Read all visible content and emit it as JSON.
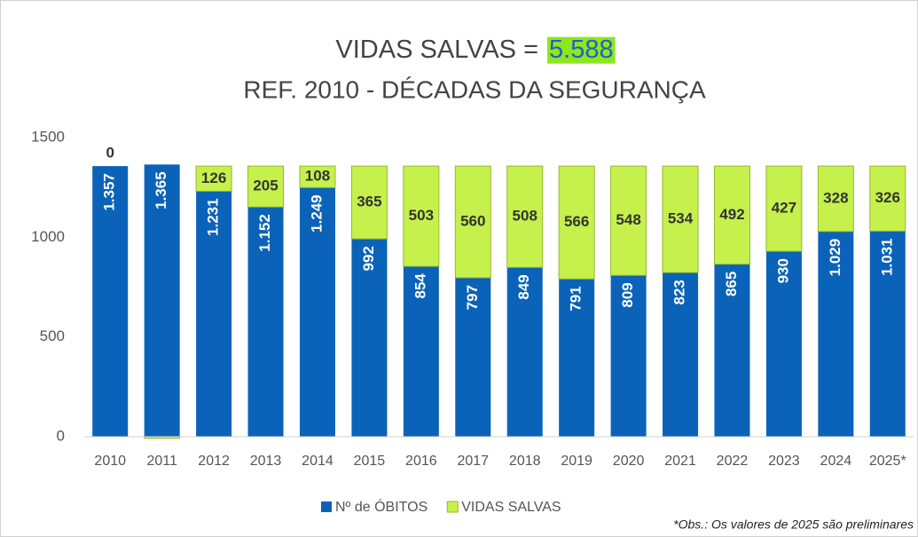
{
  "chart_data": {
    "type": "stacked_bar",
    "title": "VIDAS SALVAS =",
    "title_highlight": "5.588",
    "subtitle": "REF. 2010 - DÉCADAS DA SEGURANÇA",
    "footnote": "*Obs.: Os valores de 2025 são preliminares",
    "categories": [
      "2010",
      "2011",
      "2012",
      "2013",
      "2014",
      "2015",
      "2016",
      "2017",
      "2018",
      "2019",
      "2020",
      "2021",
      "2022",
      "2023",
      "2024",
      "2025*"
    ],
    "series": [
      {
        "name": "Nº de ÓBITOS",
        "color": "#0a63b8",
        "values": [
          1357,
          1365,
          1231,
          1152,
          1249,
          992,
          854,
          797,
          849,
          791,
          809,
          823,
          865,
          930,
          1029,
          1031
        ],
        "value_labels": [
          "1.357",
          "1.365",
          "1.231",
          "1.152",
          "1.249",
          "992",
          "854",
          "797",
          "849",
          "791",
          "809",
          "823",
          "865",
          "930",
          "1.029",
          "1.031"
        ]
      },
      {
        "name": "VIDAS SALVAS",
        "color": "#c6f04c",
        "values": [
          0,
          -8,
          126,
          205,
          108,
          365,
          503,
          560,
          508,
          566,
          548,
          534,
          492,
          427,
          328,
          326
        ],
        "value_labels": [
          "0",
          null,
          "126",
          "205",
          "108",
          "365",
          "503",
          "560",
          "508",
          "566",
          "548",
          "534",
          "492",
          "427",
          "328",
          "326"
        ]
      }
    ],
    "ylim": [
      0,
      1500
    ],
    "yticks": [
      0,
      500,
      1000,
      1500
    ],
    "grid": false,
    "legend": "bottom"
  }
}
